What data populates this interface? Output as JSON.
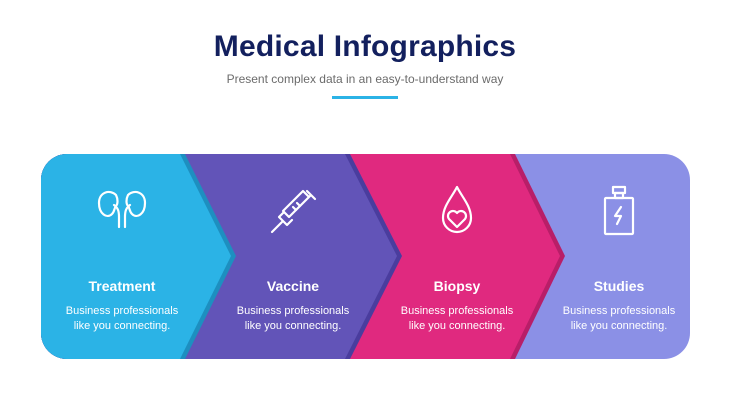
{
  "header": {
    "title": "Medical Infographics",
    "subtitle": "Present complex data in an easy-to-understand way"
  },
  "steps": [
    {
      "title": "Treatment",
      "text_line1": "Business professionals",
      "text_line2": "like you connecting.",
      "icon": "kidneys-icon",
      "color": "#2bb3e6"
    },
    {
      "title": "Vaccine",
      "text_line1": "Business professionals",
      "text_line2": "like you connecting.",
      "icon": "syringe-icon",
      "color": "#6254b8"
    },
    {
      "title": "Biopsy",
      "text_line1": "Business professionals",
      "text_line2": "like you connecting.",
      "icon": "blood-drop-heart-icon",
      "color": "#e0297f"
    },
    {
      "title": "Studies",
      "text_line1": "Business professionals",
      "text_line2": "like you connecting.",
      "icon": "battery-bottle-icon",
      "color": "#8b90e6"
    }
  ],
  "colors": {
    "title": "#13205e",
    "accent": "#2bb3e6"
  }
}
